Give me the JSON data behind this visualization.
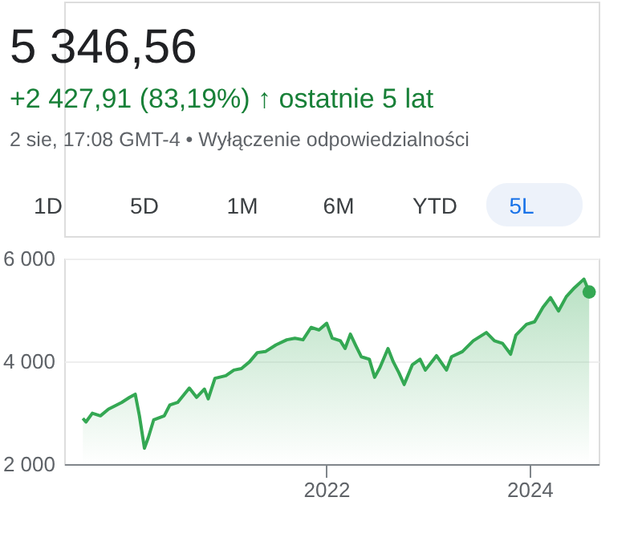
{
  "chart_data": {
    "type": "area",
    "title": "5 346,56",
    "subtitle": "+2 427,91 (83,19%) ↑ ostatnie 5 lat",
    "annotations": [
      "2 sie, 17:08 GMT-4 • Wyłączenie odpowiedzialności",
      "1D",
      "5D",
      "1M",
      "6M",
      "YTD",
      "5L"
    ],
    "series": [
      {
        "color": "#34a853",
        "x": [
          "2019-08-12",
          "2019-08-23",
          "2019-09-15",
          "2019-10-14",
          "2019-11-12",
          "2019-12-29",
          "2020-01-27",
          "2020-02-16",
          "2020-03-02",
          "2020-03-20",
          "2020-04-03",
          "2020-04-22",
          "2020-05-30",
          "2020-06-19",
          "2020-07-17",
          "2020-08-28",
          "2020-09-23",
          "2020-10-21",
          "2020-11-04",
          "2020-11-28",
          "2021-01-06",
          "2021-02-04",
          "2021-03-03",
          "2021-04-01",
          "2021-04-29",
          "2021-05-28",
          "2021-07-05",
          "2021-08-13",
          "2021-09-11",
          "2021-10-10",
          "2021-11-08",
          "2021-12-06",
          "2022-01-03",
          "2022-01-23",
          "2022-02-21",
          "2022-03-10",
          "2022-03-29",
          "2022-04-18",
          "2022-05-07",
          "2022-06-05",
          "2022-06-24",
          "2022-07-13",
          "2022-08-11",
          "2022-08-30",
          "2022-09-19",
          "2022-10-08",
          "2022-11-06",
          "2022-12-04",
          "2022-12-23",
          "2023-02-01",
          "2023-03-09",
          "2023-03-27",
          "2023-05-05",
          "2023-06-13",
          "2023-07-30",
          "2023-08-28",
          "2023-09-26",
          "2023-10-25",
          "2023-11-13",
          "2023-12-21",
          "2024-01-19",
          "2024-02-18",
          "2024-03-16",
          "2024-04-14",
          "2024-05-12",
          "2024-06-10",
          "2024-07-14",
          "2024-08-02"
        ],
        "values": [
          2890,
          2820,
          2990,
          2940,
          3070,
          3200,
          3300,
          3360,
          2940,
          2310,
          2520,
          2860,
          2940,
          3150,
          3200,
          3480,
          3300,
          3460,
          3270,
          3670,
          3720,
          3830,
          3860,
          3990,
          4170,
          4190,
          4320,
          4420,
          4450,
          4420,
          4660,
          4610,
          4740,
          4450,
          4400,
          4250,
          4530,
          4300,
          4090,
          4040,
          3690,
          3880,
          4250,
          3990,
          3780,
          3550,
          3930,
          4040,
          3830,
          4110,
          3830,
          4090,
          4190,
          4400,
          4560,
          4400,
          4350,
          4140,
          4510,
          4720,
          4770,
          5050,
          5240,
          4980,
          5260,
          5430,
          5600,
          5350
        ]
      },
      {
        "type": "scatter",
        "color": "#34a853",
        "x": [
          "2024-08-02"
        ],
        "values": [
          5350
        ]
      }
    ],
    "xlim": [
      "2019-06-06",
      "2024-09-05"
    ],
    "xticks": [
      "2022",
      "2024"
    ],
    "ylim": [
      2000,
      6000
    ],
    "yticks": [
      {
        "value": 2000,
        "label": "2 000"
      },
      {
        "value": 4000,
        "label": "4 000"
      },
      {
        "value": 6000,
        "label": "6 000"
      }
    ],
    "grid": "y"
  }
}
